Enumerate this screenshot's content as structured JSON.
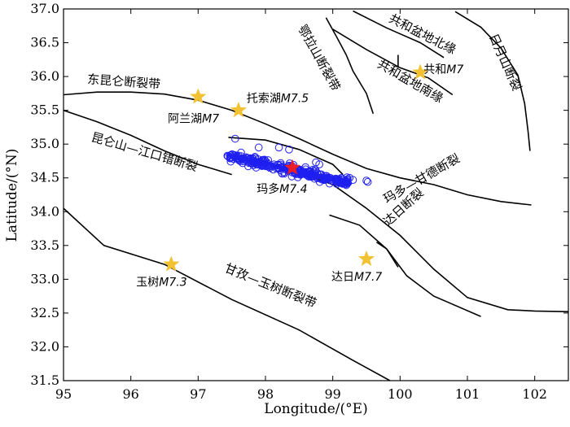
{
  "map": {
    "x_axis": {
      "label": "Longitude/(°E)",
      "range": [
        95,
        102.5
      ],
      "ticks": [
        95,
        96,
        97,
        98,
        99,
        100,
        101,
        102
      ]
    },
    "y_axis": {
      "label": "Latitude/(°N)",
      "range": [
        31.5,
        37.0
      ],
      "ticks": [
        "31.5",
        "32.0",
        "32.5",
        "33.0",
        "33.5",
        "34.0",
        "34.5",
        "35.0",
        "35.5",
        "36.0",
        "36.5",
        "37.0"
      ]
    },
    "faults": [
      {
        "id": "east-kunlun",
        "label": "东昆仑断裂带",
        "label_lon": 95.35,
        "label_lat": 35.9,
        "label_rot": 4,
        "points": [
          [
            95.0,
            35.73
          ],
          [
            95.5,
            35.77
          ],
          [
            96.0,
            35.77
          ],
          [
            96.5,
            35.74
          ],
          [
            97.0,
            35.65
          ],
          [
            97.5,
            35.5
          ],
          [
            98.0,
            35.3
          ],
          [
            98.5,
            35.08
          ],
          [
            99.0,
            34.85
          ],
          [
            99.5,
            34.64
          ],
          [
            100.0,
            34.5
          ],
          [
            100.5,
            34.4
          ],
          [
            101.0,
            34.25
          ],
          [
            101.5,
            34.15
          ],
          [
            101.95,
            34.1
          ]
        ]
      },
      {
        "id": "kunlun-jiangkou",
        "label": "昆仑山—江口错断裂",
        "label_lon": 95.4,
        "label_lat": 35.05,
        "label_rot": 16,
        "points": [
          [
            95.0,
            35.5
          ],
          [
            95.5,
            35.33
          ],
          [
            96.0,
            35.13
          ],
          [
            96.5,
            34.9
          ],
          [
            97.0,
            34.7
          ],
          [
            97.5,
            34.55
          ]
        ]
      },
      {
        "id": "kunlun-inner",
        "label": "",
        "points": [
          [
            97.45,
            35.1
          ],
          [
            98.0,
            35.06
          ],
          [
            98.5,
            34.92
          ],
          [
            99.0,
            34.7
          ],
          [
            99.15,
            34.55
          ]
        ]
      },
      {
        "id": "maduo-gande",
        "label": "玛多—甘德断裂",
        "label_lon": 99.8,
        "label_lat": 34.12,
        "label_rot": -30,
        "points": [
          [
            97.6,
            34.82
          ],
          [
            98.0,
            34.72
          ],
          [
            98.5,
            34.58
          ],
          [
            99.0,
            34.4
          ],
          [
            99.5,
            34.05
          ],
          [
            100.0,
            33.65
          ],
          [
            100.5,
            33.15
          ],
          [
            101.0,
            32.73
          ],
          [
            101.6,
            32.55
          ],
          [
            102.0,
            32.53
          ],
          [
            102.5,
            32.52
          ]
        ]
      },
      {
        "id": "dari",
        "label": "达日断裂",
        "label_lon": 99.82,
        "label_lat": 33.78,
        "label_rot": -42,
        "points": [
          [
            98.95,
            33.95
          ],
          [
            99.4,
            33.8
          ],
          [
            99.8,
            33.45
          ],
          [
            100.1,
            33.05
          ],
          [
            100.5,
            32.75
          ],
          [
            101.2,
            32.45
          ]
        ]
      },
      {
        "id": "dari-short",
        "label": "",
        "points": [
          [
            99.65,
            33.55
          ],
          [
            99.8,
            33.45
          ],
          [
            99.97,
            33.18
          ]
        ]
      },
      {
        "id": "ganzi-yushu",
        "label": "甘孜—玉树断裂带",
        "label_lon": 97.38,
        "label_lat": 33.12,
        "label_rot": 22,
        "points": [
          [
            95.0,
            34.05
          ],
          [
            95.6,
            33.5
          ],
          [
            96.5,
            33.22
          ],
          [
            97.5,
            32.7
          ],
          [
            98.5,
            32.25
          ],
          [
            99.3,
            31.8
          ],
          [
            99.85,
            31.5
          ]
        ]
      },
      {
        "id": "ela-shan",
        "label": "鄂拉山断裂带",
        "label_lon": 98.48,
        "label_lat": 36.72,
        "label_rot": 61,
        "points": [
          [
            98.9,
            36.87
          ],
          [
            99.05,
            36.6
          ],
          [
            99.2,
            36.32
          ],
          [
            99.3,
            36.08
          ],
          [
            99.5,
            35.75
          ],
          [
            99.6,
            35.45
          ]
        ]
      },
      {
        "id": "gonghe-north",
        "label": "共和盆地北缘",
        "label_lon": 99.82,
        "label_lat": 36.82,
        "label_rot": 27,
        "points": [
          [
            99.3,
            36.97
          ],
          [
            99.8,
            36.72
          ],
          [
            100.3,
            36.5
          ],
          [
            100.65,
            36.28
          ]
        ]
      },
      {
        "id": "gonghe-south",
        "label": "共和盆地南缘",
        "label_lon": 99.65,
        "label_lat": 36.15,
        "label_rot": 30,
        "points": [
          [
            99.0,
            36.7
          ],
          [
            99.5,
            36.4
          ],
          [
            100.0,
            36.13
          ],
          [
            100.42,
            35.98
          ],
          [
            100.78,
            35.73
          ]
        ]
      },
      {
        "id": "gonghe-link",
        "label": "",
        "points": [
          [
            99.97,
            36.32
          ],
          [
            99.97,
            36.13
          ]
        ]
      },
      {
        "id": "riyue-shan",
        "label": "日月山断裂",
        "label_lon": 101.32,
        "label_lat": 36.6,
        "label_rot": 66,
        "points": [
          [
            100.82,
            36.96
          ],
          [
            101.2,
            36.73
          ],
          [
            101.5,
            36.42
          ],
          [
            101.75,
            36.02
          ],
          [
            101.85,
            35.6
          ],
          [
            101.9,
            35.2
          ],
          [
            101.93,
            34.9
          ]
        ]
      }
    ],
    "earthquakes": [
      {
        "id": "alan-hu",
        "label_name": "阿兰湖",
        "label_mag": "M7",
        "lon": 97.0,
        "lat": 35.7,
        "color": "#f2c232",
        "label_lon": 96.55,
        "label_lat": 35.32
      },
      {
        "id": "tuosuo-hu",
        "label_name": "托索湖",
        "label_mag": "M7.5",
        "lon": 97.6,
        "lat": 35.5,
        "color": "#f2c232",
        "label_lon": 97.72,
        "label_lat": 35.62
      },
      {
        "id": "gonghe",
        "label_name": "共和",
        "label_mag": "M7",
        "lon": 100.3,
        "lat": 36.06,
        "color": "#f2c232",
        "label_lon": 100.35,
        "label_lat": 36.05
      },
      {
        "id": "yushu",
        "label_name": "玉树",
        "label_mag": "M7.3",
        "lon": 96.6,
        "lat": 33.22,
        "color": "#f2c232",
        "label_lon": 96.08,
        "label_lat": 32.9
      },
      {
        "id": "dari-eq",
        "label_name": "达日",
        "label_mag": "M7.7",
        "lon": 99.5,
        "lat": 33.3,
        "color": "#f2c232",
        "label_lon": 98.98,
        "label_lat": 32.98
      },
      {
        "id": "maduo",
        "label_name": "玛多",
        "label_mag": "M7.4",
        "lon": 98.4,
        "lat": 34.65,
        "color": "#ee1c25",
        "label_lon": 97.87,
        "label_lat": 34.28
      }
    ],
    "aftershocks": {
      "color": "#1f1ff0",
      "band": {
        "lon_start": 97.45,
        "lat_start": 34.83,
        "lon_end": 99.25,
        "lat_end": 34.42
      },
      "count": 260,
      "extras": [
        [
          97.55,
          35.08
        ],
        [
          98.2,
          34.95
        ],
        [
          98.35,
          34.92
        ],
        [
          98.75,
          34.73
        ],
        [
          98.8,
          34.7
        ],
        [
          99.3,
          34.47
        ],
        [
          99.5,
          34.46
        ],
        [
          99.52,
          34.44
        ],
        [
          99.25,
          34.5
        ],
        [
          97.9,
          34.95
        ]
      ]
    }
  }
}
